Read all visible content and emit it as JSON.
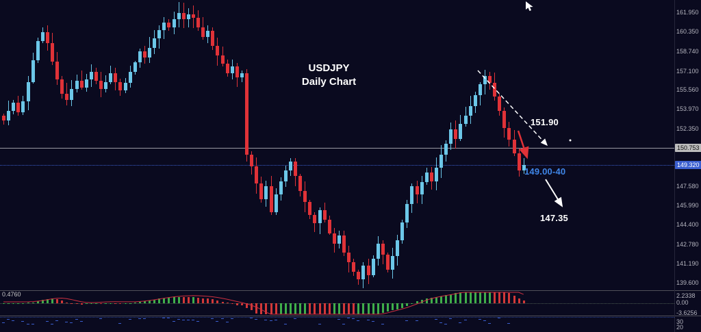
{
  "title": {
    "line1": "USDJPY",
    "line2": "Daily Chart"
  },
  "annotations": {
    "resistance_label": "151.90",
    "zone_label": "149.00-40",
    "target_label": "147.35"
  },
  "axis": {
    "price_labels": [
      {
        "label": "161.950",
        "value": 161.95
      },
      {
        "label": "160.350",
        "value": 160.35
      },
      {
        "label": "158.740",
        "value": 158.74
      },
      {
        "label": "157.100",
        "value": 157.1
      },
      {
        "label": "155.560",
        "value": 155.56
      },
      {
        "label": "153.970",
        "value": 153.97
      },
      {
        "label": "152.350",
        "value": 152.35
      },
      {
        "label": "147.580",
        "value": 147.58
      },
      {
        "label": "145.990",
        "value": 145.99
      },
      {
        "label": "144.400",
        "value": 144.4
      },
      {
        "label": "142.780",
        "value": 142.78
      },
      {
        "label": "141.190",
        "value": 141.19
      },
      {
        "label": "139.600",
        "value": 139.6
      }
    ],
    "hline_box": {
      "label": "150.753",
      "value": 150.753
    },
    "bid_box": {
      "label": "149.320",
      "value": 149.32
    },
    "indicator_labels": [
      "2.2338",
      "0.00",
      "-3.6256"
    ],
    "pane2_labels": [
      "30",
      "20"
    ],
    "indicator_value": "0.4760"
  },
  "colors": {
    "bull": "#6cc7e8",
    "bear": "#e03238",
    "hist_up": "#3fae4a",
    "hist_down": "#d23838",
    "signal": "#cc3040",
    "note_blue": "#3f86e8",
    "hline": "#9a9aa2",
    "bid_line": "#3b5fd0",
    "axis_text": "#b4b4be",
    "box_gray_bg": "#bcbcbc",
    "box_blue_bg": "#3b5fd0"
  },
  "chart_data": {
    "type": "candlestick",
    "symbol": "USDJPY",
    "timeframe": "Daily",
    "title": "USDJPY Daily Chart",
    "ylim": [
      138.9,
      162.6
    ],
    "closes": [
      153.0,
      153.8,
      154.5,
      153.7,
      154.6,
      156.2,
      158.0,
      159.6,
      160.3,
      159.4,
      157.9,
      156.4,
      155.2,
      154.7,
      155.6,
      156.3,
      155.7,
      156.4,
      157.0,
      156.3,
      155.6,
      156.2,
      156.9,
      156.2,
      155.5,
      156.1,
      157.0,
      157.8,
      158.7,
      158.2,
      159.0,
      159.8,
      160.5,
      161.1,
      160.7,
      161.4,
      161.9,
      161.4,
      161.8,
      161.5,
      160.7,
      159.9,
      160.4,
      159.2,
      158.4,
      157.7,
      156.9,
      157.5,
      156.6,
      156.9,
      150.2,
      149.2,
      147.8,
      146.5,
      147.6,
      145.4,
      146.9,
      148.0,
      148.9,
      149.6,
      148.4,
      147.2,
      146.3,
      145.2,
      144.5,
      145.6,
      144.8,
      143.7,
      142.8,
      143.5,
      142.1,
      141.3,
      140.5,
      139.9,
      141.0,
      140.2,
      141.6,
      142.8,
      141.9,
      140.7,
      141.8,
      143.1,
      144.6,
      146.1,
      147.6,
      146.9,
      147.9,
      148.7,
      148.0,
      149.1,
      150.2,
      151.1,
      152.3,
      151.5,
      152.7,
      153.4,
      154.2,
      155.1,
      156.0,
      156.7,
      156.1,
      155.0,
      153.8,
      152.4,
      151.4,
      150.3,
      148.9,
      149.32
    ],
    "levels": {
      "hline": 150.753,
      "current_bid": 149.32,
      "resistance": 151.9,
      "support_zone_low": 149.0,
      "support_zone_high": 149.4,
      "target": 147.35
    },
    "indicator": {
      "type": "histogram",
      "max_label": 2.2338,
      "zero_label": 0.0,
      "min_label": -3.6256,
      "current_value": 0.476
    }
  }
}
